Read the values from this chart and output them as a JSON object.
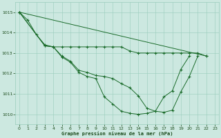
{
  "title": "Graphe pression niveau de la mer (hPa)",
  "background_color": "#cce8e0",
  "grid_color": "#99ccbb",
  "line_color": "#1a6b2a",
  "xlim": [
    -0.5,
    23.5
  ],
  "ylim": [
    1009.5,
    1015.5
  ],
  "yticks": [
    1010,
    1011,
    1012,
    1013,
    1014,
    1015
  ],
  "xticks": [
    0,
    1,
    2,
    3,
    4,
    5,
    6,
    7,
    8,
    9,
    10,
    11,
    12,
    13,
    14,
    15,
    16,
    17,
    18,
    19,
    20,
    21,
    22,
    23
  ],
  "font_color": "#1a4a1a",
  "series": [
    {
      "x": [
        0,
        1,
        2,
        3,
        4,
        5,
        6,
        7,
        8,
        9,
        10,
        11,
        12,
        13,
        14,
        15,
        16,
        17,
        18,
        19,
        20
      ],
      "y": [
        1015.0,
        1014.6,
        1013.9,
        1013.4,
        1013.3,
        1012.8,
        1012.55,
        1012.05,
        1011.85,
        1011.75,
        1010.85,
        1010.5,
        1010.15,
        1010.05,
        1010.0,
        1010.05,
        1010.15,
        1010.85,
        1011.15,
        1012.2,
        1012.85
      ]
    },
    {
      "x": [
        0,
        3,
        4,
        5,
        6,
        7,
        8,
        9,
        10,
        11,
        12,
        13,
        14,
        15,
        16,
        17,
        18,
        19,
        20,
        21
      ],
      "y": [
        1015.0,
        1013.35,
        1013.3,
        1012.85,
        1012.6,
        1012.15,
        1012.05,
        1011.9,
        1011.85,
        1011.75,
        1011.5,
        1011.3,
        1010.9,
        1010.3,
        1010.15,
        1010.1,
        1010.2,
        1011.1,
        1011.85,
        1012.85
      ]
    },
    {
      "x": [
        0,
        3,
        4,
        5,
        6,
        7,
        8,
        9,
        10,
        11,
        12,
        13,
        14,
        15,
        16,
        17,
        18,
        19,
        20,
        21,
        22
      ],
      "y": [
        1015.0,
        1013.35,
        1013.3,
        1013.3,
        1013.3,
        1013.3,
        1013.3,
        1013.3,
        1013.3,
        1013.3,
        1013.3,
        1013.1,
        1013.0,
        1013.0,
        1013.0,
        1013.0,
        1013.0,
        1013.0,
        1013.0,
        1013.0,
        1012.85
      ]
    },
    {
      "x": [
        0,
        22
      ],
      "y": [
        1015.0,
        1012.85
      ]
    }
  ]
}
